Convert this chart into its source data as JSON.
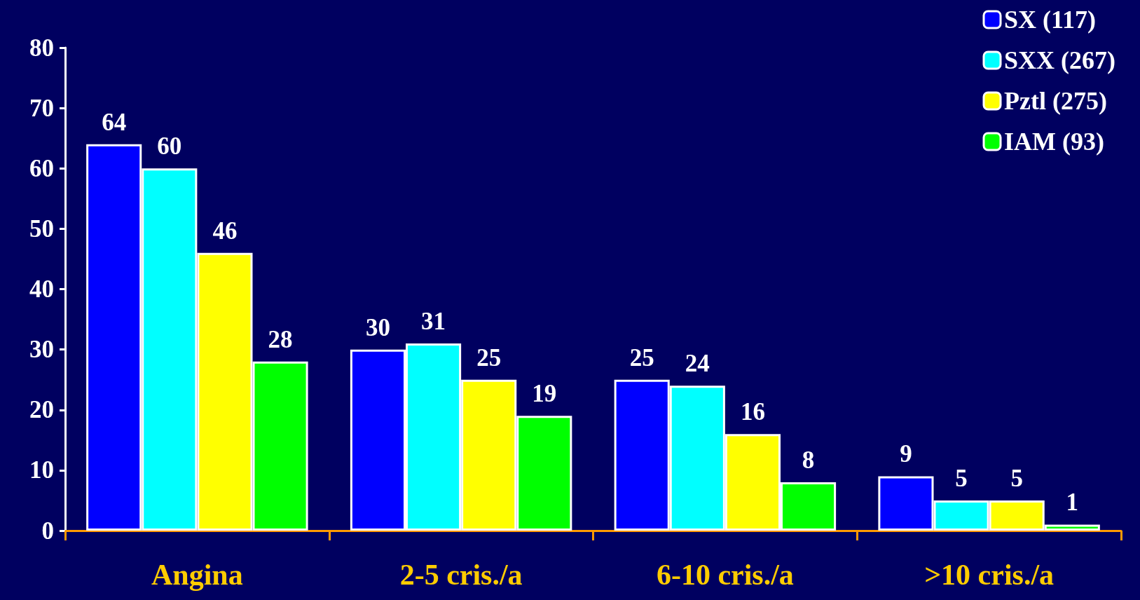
{
  "chart_data": {
    "type": "bar",
    "categories": [
      "Angina",
      "2-5 cris./a",
      "6-10 cris./a",
      ">10 cris./a"
    ],
    "series": [
      {
        "name": "SX (117)",
        "color": "#0000ff",
        "values": [
          64,
          30,
          25,
          9
        ]
      },
      {
        "name": "SXX (267)",
        "color": "#00ffff",
        "values": [
          60,
          31,
          24,
          5
        ]
      },
      {
        "name": "Pztl (275)",
        "color": "#ffff00",
        "values": [
          46,
          25,
          16,
          5
        ]
      },
      {
        "name": "IAM (93)",
        "color": "#00ff00",
        "values": [
          28,
          19,
          8,
          1
        ]
      }
    ],
    "ylim": [
      0,
      80
    ],
    "yticks": [
      0,
      10,
      20,
      30,
      40,
      50,
      60,
      70,
      80
    ],
    "data_labels": true,
    "grid": false,
    "legend": "top right"
  }
}
